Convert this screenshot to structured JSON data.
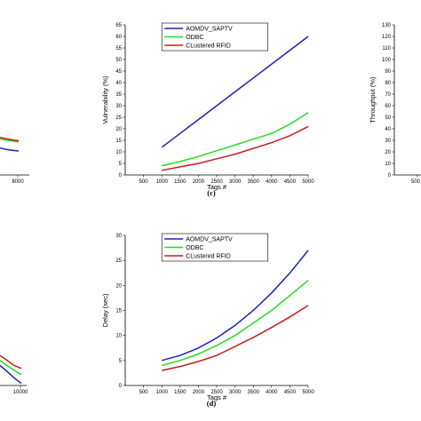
{
  "chart_data": [
    {
      "id": "c",
      "type": "line",
      "caption": "(c)",
      "xlabel": "Tags #",
      "ylabel": "Vulnerability (%)",
      "xlim": [
        0,
        5000
      ],
      "ylim": [
        0,
        65
      ],
      "xticks": [
        500,
        1000,
        1500,
        2000,
        2500,
        3000,
        3500,
        4000,
        4500,
        5000
      ],
      "yticks": [
        0,
        5,
        10,
        15,
        20,
        25,
        30,
        35,
        40,
        45,
        50,
        55,
        60,
        65
      ],
      "legend": "top-center",
      "series": [
        {
          "name": "AOMDV_SAPTV",
          "color": "#1f1fb4",
          "x": [
            1000,
            1500,
            2000,
            2500,
            3000,
            3500,
            4000,
            4500,
            5000
          ],
          "values": [
            12,
            18,
            24,
            30,
            36,
            42,
            48,
            54,
            60
          ]
        },
        {
          "name": "ODBC",
          "color": "#22dd22",
          "x": [
            1000,
            1500,
            2000,
            2500,
            3000,
            3500,
            4000,
            4500,
            5000
          ],
          "values": [
            4,
            5.8,
            8,
            10.5,
            13,
            15.5,
            18,
            22,
            27
          ]
        },
        {
          "name": "CLustered RFID",
          "color": "#c41e1e",
          "x": [
            1000,
            1500,
            2000,
            2500,
            3000,
            3500,
            4000,
            4500,
            5000
          ],
          "values": [
            2,
            3.5,
            5,
            7,
            9,
            11.5,
            14,
            17,
            21
          ]
        }
      ]
    },
    {
      "id": "d",
      "type": "line",
      "caption": "(d)",
      "xlabel": "Tags #",
      "ylabel": "Delay (sec)",
      "xlim": [
        0,
        5000
      ],
      "ylim": [
        0,
        30
      ],
      "xticks": [
        500,
        1000,
        1500,
        2000,
        2500,
        3000,
        3500,
        4000,
        4500,
        5000
      ],
      "yticks": [
        0,
        5,
        10,
        15,
        20,
        25,
        30
      ],
      "legend": "top-center",
      "series": [
        {
          "name": "AOMDV_SAPTV",
          "color": "#1f1fb4",
          "x": [
            1000,
            1500,
            2000,
            2500,
            3000,
            3500,
            4000,
            4500,
            5000
          ],
          "values": [
            5,
            6,
            7.5,
            9.5,
            12,
            15,
            18.5,
            22.5,
            27
          ]
        },
        {
          "name": "ODBC",
          "color": "#22dd22",
          "x": [
            1000,
            1500,
            2000,
            2500,
            3000,
            3500,
            4000,
            4500,
            5000
          ],
          "values": [
            4,
            5,
            6.3,
            8,
            10,
            12.5,
            15,
            18,
            21
          ]
        },
        {
          "name": "CLustered RFID",
          "color": "#c41e1e",
          "x": [
            1000,
            1500,
            2000,
            2500,
            3000,
            3500,
            4000,
            4500,
            5000
          ],
          "values": [
            3,
            3.8,
            4.8,
            6,
            7.8,
            9.6,
            11.6,
            13.7,
            16
          ]
        }
      ]
    },
    {
      "id": "top-right-partial",
      "type": "line",
      "ylabel": "Throughput (%)",
      "yticks": [
        0,
        10,
        20,
        30,
        40,
        50,
        60,
        70,
        80,
        90,
        100,
        110,
        120,
        130
      ],
      "ylim": [
        0,
        130
      ],
      "xticks": [
        500
      ],
      "series": []
    },
    {
      "id": "top-left-partial",
      "type": "line",
      "xticks": [
        8000
      ],
      "series": [
        {
          "name": "blue",
          "color": "#1f1fb4",
          "values": [
            9,
            8.5,
            8.2,
            8.0
          ]
        },
        {
          "name": "green",
          "color": "#22dd22",
          "values": [
            12,
            11.6,
            11.3,
            11.0
          ]
        },
        {
          "name": "red",
          "color": "#c41e1e",
          "values": [
            12.5,
            12.1,
            11.7,
            11.4
          ]
        }
      ]
    },
    {
      "id": "bottom-left-partial",
      "type": "line",
      "xticks": [
        10000
      ],
      "series": [
        {
          "name": "red",
          "color": "#c41e1e",
          "values": [
            6,
            5,
            4,
            3.4
          ]
        },
        {
          "name": "green",
          "color": "#22dd22",
          "values": [
            5,
            4,
            3,
            2.2
          ]
        },
        {
          "name": "blue",
          "color": "#1f1fb4",
          "values": [
            4,
            2.8,
            1.5,
            0.4
          ]
        }
      ]
    }
  ]
}
